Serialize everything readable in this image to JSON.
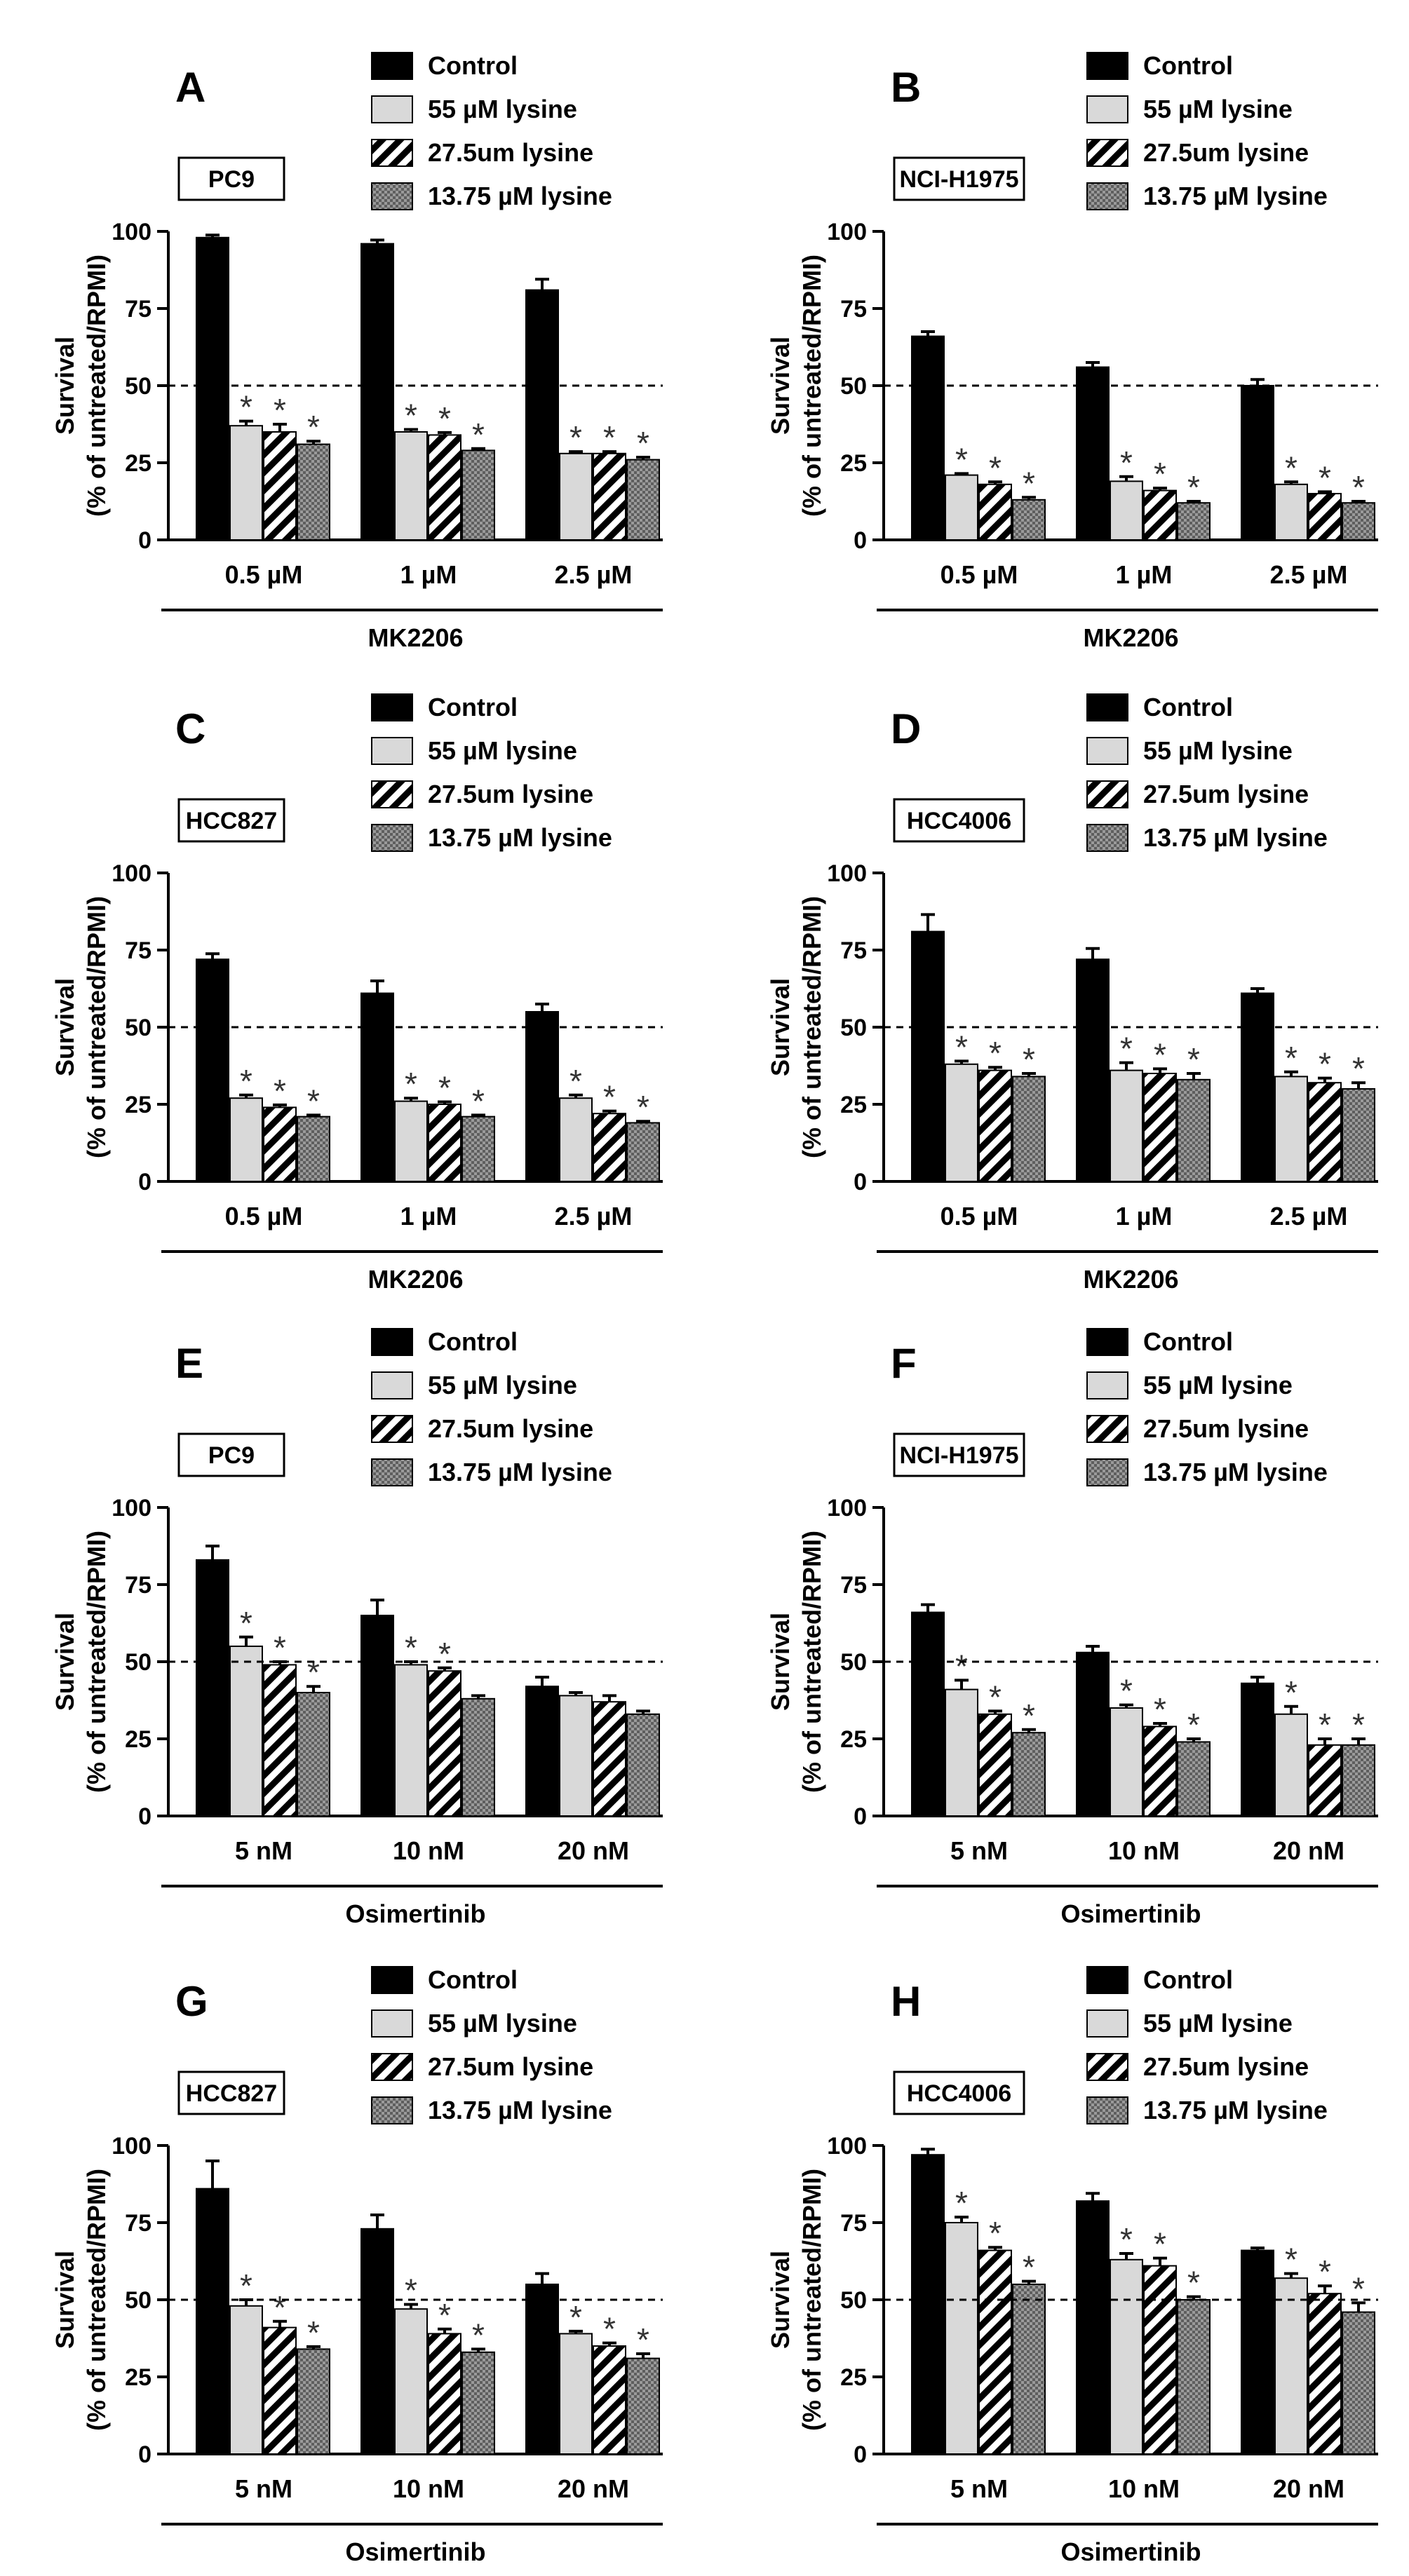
{
  "figure": {
    "y_label_line1": "Survival",
    "y_label_line2": "(% of untreated/RPMI)",
    "legend": [
      "Control",
      "55 µM lysine",
      "27.5um lysine",
      "13.75 µM lysine"
    ],
    "series_styles": [
      "solid-black",
      "light-gray",
      "diagonal-stripes",
      "crosshatch"
    ],
    "colors": {
      "control": "#000000",
      "lysine_55": "#d9d9d9",
      "stripe": "#000000",
      "crosshatch": "#8a8a8a"
    },
    "significance_marker": "*",
    "reference_line": 50
  },
  "chart_data": [
    {
      "type": "bar",
      "panel": "A",
      "cell_line": "PC9",
      "drug": "MK2206",
      "categories": [
        "0.5 µM",
        "1 µM",
        "2.5 µM"
      ],
      "ylim": [
        0,
        100
      ],
      "yticks": [
        0,
        25,
        50,
        75,
        100
      ],
      "ylabel": "Survival (% of untreated/RPMI)",
      "xlabel": "MK2206",
      "series": [
        {
          "name": "Control",
          "values": [
            98,
            96,
            81
          ],
          "errors": [
            0.8,
            1.2,
            3.5
          ],
          "sig": [
            false,
            false,
            false
          ]
        },
        {
          "name": "55 µM lysine",
          "values": [
            37,
            35,
            28
          ],
          "errors": [
            1.5,
            0.8,
            0.6
          ],
          "sig": [
            true,
            true,
            true
          ]
        },
        {
          "name": "27.5um lysine",
          "values": [
            35,
            34,
            28
          ],
          "errors": [
            2.5,
            0.8,
            0.6
          ],
          "sig": [
            true,
            true,
            true
          ]
        },
        {
          "name": "13.75 µM lysine",
          "values": [
            31,
            29,
            26
          ],
          "errors": [
            1.0,
            0.6,
            0.8
          ],
          "sig": [
            true,
            true,
            true
          ]
        }
      ]
    },
    {
      "type": "bar",
      "panel": "B",
      "cell_line": "NCI-H1975",
      "drug": "MK2206",
      "categories": [
        "0.5 µM",
        "1 µM",
        "2.5 µM"
      ],
      "ylim": [
        0,
        100
      ],
      "yticks": [
        0,
        25,
        50,
        75,
        100
      ],
      "ylabel": "Survival (% of untreated/RPMI)",
      "xlabel": "MK2206",
      "series": [
        {
          "name": "Control",
          "values": [
            66,
            56,
            50
          ],
          "errors": [
            1.5,
            1.5,
            2.0
          ],
          "sig": [
            false,
            false,
            false
          ]
        },
        {
          "name": "55 µM lysine",
          "values": [
            21,
            19,
            18
          ],
          "errors": [
            0.5,
            1.5,
            0.8
          ],
          "sig": [
            true,
            true,
            true
          ]
        },
        {
          "name": "27.5um lysine",
          "values": [
            18,
            16,
            15
          ],
          "errors": [
            0.8,
            0.8,
            0.6
          ],
          "sig": [
            true,
            true,
            true
          ]
        },
        {
          "name": "13.75 µM lysine",
          "values": [
            13,
            12,
            12
          ],
          "errors": [
            0.8,
            0.5,
            0.5
          ],
          "sig": [
            true,
            true,
            true
          ]
        }
      ]
    },
    {
      "type": "bar",
      "panel": "C",
      "cell_line": "HCC827",
      "drug": "MK2206",
      "categories": [
        "0.5 µM",
        "1 µM",
        "2.5 µM"
      ],
      "ylim": [
        0,
        100
      ],
      "yticks": [
        0,
        25,
        50,
        75,
        100
      ],
      "ylabel": "Survival (% of untreated/RPMI)",
      "xlabel": "MK2206",
      "series": [
        {
          "name": "Control",
          "values": [
            72,
            61,
            55
          ],
          "errors": [
            1.8,
            4.0,
            2.5
          ],
          "sig": [
            false,
            false,
            false
          ]
        },
        {
          "name": "55 µM lysine",
          "values": [
            27,
            26,
            27
          ],
          "errors": [
            1.0,
            1.0,
            1.0
          ],
          "sig": [
            true,
            true,
            true
          ]
        },
        {
          "name": "27.5um lysine",
          "values": [
            24,
            25,
            22
          ],
          "errors": [
            0.8,
            0.8,
            0.8
          ],
          "sig": [
            true,
            true,
            true
          ]
        },
        {
          "name": "13.75 µM lysine",
          "values": [
            21,
            21,
            19
          ],
          "errors": [
            0.5,
            0.5,
            0.5
          ],
          "sig": [
            true,
            true,
            true
          ]
        }
      ]
    },
    {
      "type": "bar",
      "panel": "D",
      "cell_line": "HCC4006",
      "drug": "MK2206",
      "categories": [
        "0.5 µM",
        "1 µM",
        "2.5 µM"
      ],
      "ylim": [
        0,
        100
      ],
      "yticks": [
        0,
        25,
        50,
        75,
        100
      ],
      "ylabel": "Survival (% of untreated/RPMI)",
      "xlabel": "MK2206",
      "series": [
        {
          "name": "Control",
          "values": [
            81,
            72,
            61
          ],
          "errors": [
            5.5,
            3.5,
            1.5
          ],
          "sig": [
            false,
            false,
            false
          ]
        },
        {
          "name": "55 µM lysine",
          "values": [
            38,
            36,
            34
          ],
          "errors": [
            1.0,
            2.5,
            1.5
          ],
          "sig": [
            true,
            true,
            true
          ]
        },
        {
          "name": "27.5um lysine",
          "values": [
            36,
            35,
            32
          ],
          "errors": [
            1.0,
            1.5,
            1.5
          ],
          "sig": [
            true,
            true,
            true
          ]
        },
        {
          "name": "13.75 µM lysine",
          "values": [
            34,
            33,
            30
          ],
          "errors": [
            1.0,
            2.0,
            2.0
          ],
          "sig": [
            true,
            true,
            true
          ]
        }
      ]
    },
    {
      "type": "bar",
      "panel": "E",
      "cell_line": "PC9",
      "drug": "Osimertinib",
      "categories": [
        "5 nM",
        "10 nM",
        "20 nM"
      ],
      "ylim": [
        0,
        100
      ],
      "yticks": [
        0,
        25,
        50,
        75,
        100
      ],
      "ylabel": "Survival (% of untreated/RPMI)",
      "xlabel": "Osimertinib",
      "series": [
        {
          "name": "Control",
          "values": [
            83,
            65,
            42
          ],
          "errors": [
            4.5,
            5.0,
            3.0
          ],
          "sig": [
            false,
            false,
            false
          ]
        },
        {
          "name": "55 µM lysine",
          "values": [
            55,
            49,
            39
          ],
          "errors": [
            3.0,
            1.0,
            1.0
          ],
          "sig": [
            true,
            true,
            false
          ]
        },
        {
          "name": "27.5um lysine",
          "values": [
            49,
            47,
            37
          ],
          "errors": [
            1.0,
            1.0,
            2.0
          ],
          "sig": [
            true,
            true,
            false
          ]
        },
        {
          "name": "13.75 µM lysine",
          "values": [
            40,
            38,
            33
          ],
          "errors": [
            2.0,
            1.0,
            1.0
          ],
          "sig": [
            true,
            false,
            false
          ]
        }
      ]
    },
    {
      "type": "bar",
      "panel": "F",
      "cell_line": "NCI-H1975",
      "drug": "Osimertinib",
      "categories": [
        "5 nM",
        "10 nM",
        "20 nM"
      ],
      "ylim": [
        0,
        100
      ],
      "yticks": [
        0,
        25,
        50,
        75,
        100
      ],
      "ylabel": "Survival (% of untreated/RPMI)",
      "xlabel": "Osimertinib",
      "series": [
        {
          "name": "Control",
          "values": [
            66,
            53,
            43
          ],
          "errors": [
            2.5,
            2.0,
            2.0
          ],
          "sig": [
            false,
            false,
            false
          ]
        },
        {
          "name": "55 µM lysine",
          "values": [
            41,
            35,
            33
          ],
          "errors": [
            3.0,
            1.0,
            2.5
          ],
          "sig": [
            true,
            true,
            true
          ]
        },
        {
          "name": "27.5um lysine",
          "values": [
            33,
            29,
            23
          ],
          "errors": [
            1.0,
            1.0,
            2.0
          ],
          "sig": [
            true,
            true,
            true
          ]
        },
        {
          "name": "13.75 µM lysine",
          "values": [
            27,
            24,
            23
          ],
          "errors": [
            1.0,
            1.0,
            2.0
          ],
          "sig": [
            true,
            true,
            true
          ]
        }
      ]
    },
    {
      "type": "bar",
      "panel": "G",
      "cell_line": "HCC827",
      "drug": "Osimertinib",
      "categories": [
        "5 nM",
        "10 nM",
        "20 nM"
      ],
      "ylim": [
        0,
        100
      ],
      "yticks": [
        0,
        25,
        50,
        75,
        100
      ],
      "ylabel": "Survival (% of untreated/RPMI)",
      "xlabel": "Osimertinib",
      "series": [
        {
          "name": "Control",
          "values": [
            86,
            73,
            55
          ],
          "errors": [
            9.0,
            4.5,
            3.5
          ],
          "sig": [
            false,
            false,
            false
          ]
        },
        {
          "name": "55 µM lysine",
          "values": [
            48,
            47,
            39
          ],
          "errors": [
            2.0,
            1.5,
            0.8
          ],
          "sig": [
            true,
            true,
            true
          ]
        },
        {
          "name": "27.5um lysine",
          "values": [
            41,
            39,
            35
          ],
          "errors": [
            2.0,
            1.5,
            1.0
          ],
          "sig": [
            true,
            true,
            true
          ]
        },
        {
          "name": "13.75 µM lysine",
          "values": [
            34,
            33,
            31
          ],
          "errors": [
            0.8,
            1.0,
            1.5
          ],
          "sig": [
            true,
            true,
            true
          ]
        }
      ]
    },
    {
      "type": "bar",
      "panel": "H",
      "cell_line": "HCC4006",
      "drug": "Osimertinib",
      "categories": [
        "5 nM",
        "10 nM",
        "20 nM"
      ],
      "ylim": [
        0,
        100
      ],
      "yticks": [
        0,
        25,
        50,
        75,
        100
      ],
      "ylabel": "Survival (% of untreated/RPMI)",
      "xlabel": "Osimertinib",
      "series": [
        {
          "name": "Control",
          "values": [
            97,
            82,
            66
          ],
          "errors": [
            1.8,
            2.5,
            0.8
          ],
          "sig": [
            false,
            false,
            false
          ]
        },
        {
          "name": "55 µM lysine",
          "values": [
            75,
            63,
            57
          ],
          "errors": [
            1.8,
            2.0,
            1.5
          ],
          "sig": [
            true,
            true,
            true
          ]
        },
        {
          "name": "27.5um lysine",
          "values": [
            66,
            61,
            52
          ],
          "errors": [
            1.0,
            2.5,
            2.5
          ],
          "sig": [
            true,
            true,
            true
          ]
        },
        {
          "name": "13.75 µM lysine",
          "values": [
            55,
            50,
            46
          ],
          "errors": [
            1.0,
            1.0,
            3.0
          ],
          "sig": [
            true,
            true,
            true
          ]
        }
      ]
    }
  ]
}
